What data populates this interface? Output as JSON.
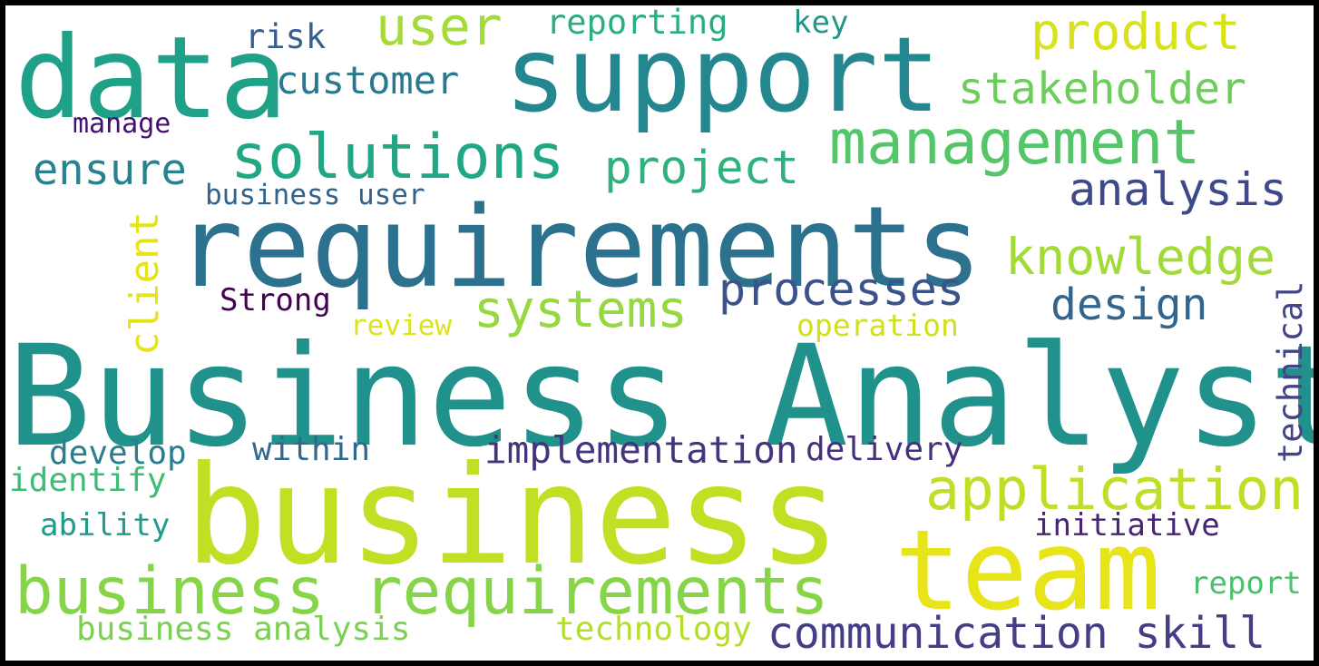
{
  "words": [
    {
      "text": "Business Analyst",
      "color": "#21918c"
    },
    {
      "text": "business",
      "color": "#c2df23"
    },
    {
      "text": "requirements",
      "color": "#2c728e"
    },
    {
      "text": "support",
      "color": "#24868e"
    },
    {
      "text": "data",
      "color": "#1fa187"
    },
    {
      "text": "team",
      "color": "#e7e419"
    },
    {
      "text": "business requirements",
      "color": "#86d549"
    },
    {
      "text": "management",
      "color": "#54c568"
    },
    {
      "text": "solutions",
      "color": "#22a785"
    },
    {
      "text": "application",
      "color": "#bddf26"
    },
    {
      "text": "knowledge",
      "color": "#a2da37"
    },
    {
      "text": "communication skill",
      "color": "#433e85"
    },
    {
      "text": "systems",
      "color": "#95d840"
    },
    {
      "text": "user",
      "color": "#a5db36"
    },
    {
      "text": "product",
      "color": "#d8e219"
    },
    {
      "text": "processes",
      "color": "#3b528b"
    },
    {
      "text": "project",
      "color": "#2db27d"
    },
    {
      "text": "analysis",
      "color": "#3e4989"
    },
    {
      "text": "stakeholder",
      "color": "#6ccd5a"
    },
    {
      "text": "implementation",
      "color": "#46337f"
    },
    {
      "text": "design",
      "color": "#32658e"
    },
    {
      "text": "customer",
      "color": "#2a788e"
    },
    {
      "text": "ensure",
      "color": "#26828e"
    },
    {
      "text": "client",
      "color": "#e5e419"
    },
    {
      "text": "technical",
      "color": "#414487"
    },
    {
      "text": "reporting",
      "color": "#29af7f"
    },
    {
      "text": "develop",
      "color": "#287d8e"
    },
    {
      "text": "business analysis",
      "color": "#7ad151"
    },
    {
      "text": "technology",
      "color": "#b5de2b"
    },
    {
      "text": "within",
      "color": "#31688e"
    },
    {
      "text": "delivery",
      "color": "#472f7d"
    },
    {
      "text": "initiative",
      "color": "#482475"
    },
    {
      "text": "identify",
      "color": "#3dbc74"
    },
    {
      "text": "risk",
      "color": "#355f8d"
    },
    {
      "text": "key",
      "color": "#1f958b"
    },
    {
      "text": "ability",
      "color": "#1e9b8a"
    },
    {
      "text": "report",
      "color": "#4ac16d"
    },
    {
      "text": "business user",
      "color": "#33638d"
    },
    {
      "text": "Strong",
      "color": "#440154"
    },
    {
      "text": "review",
      "color": "#dde318"
    },
    {
      "text": "operation",
      "color": "#d0e11c"
    },
    {
      "text": "manage",
      "color": "#440f76"
    }
  ]
}
